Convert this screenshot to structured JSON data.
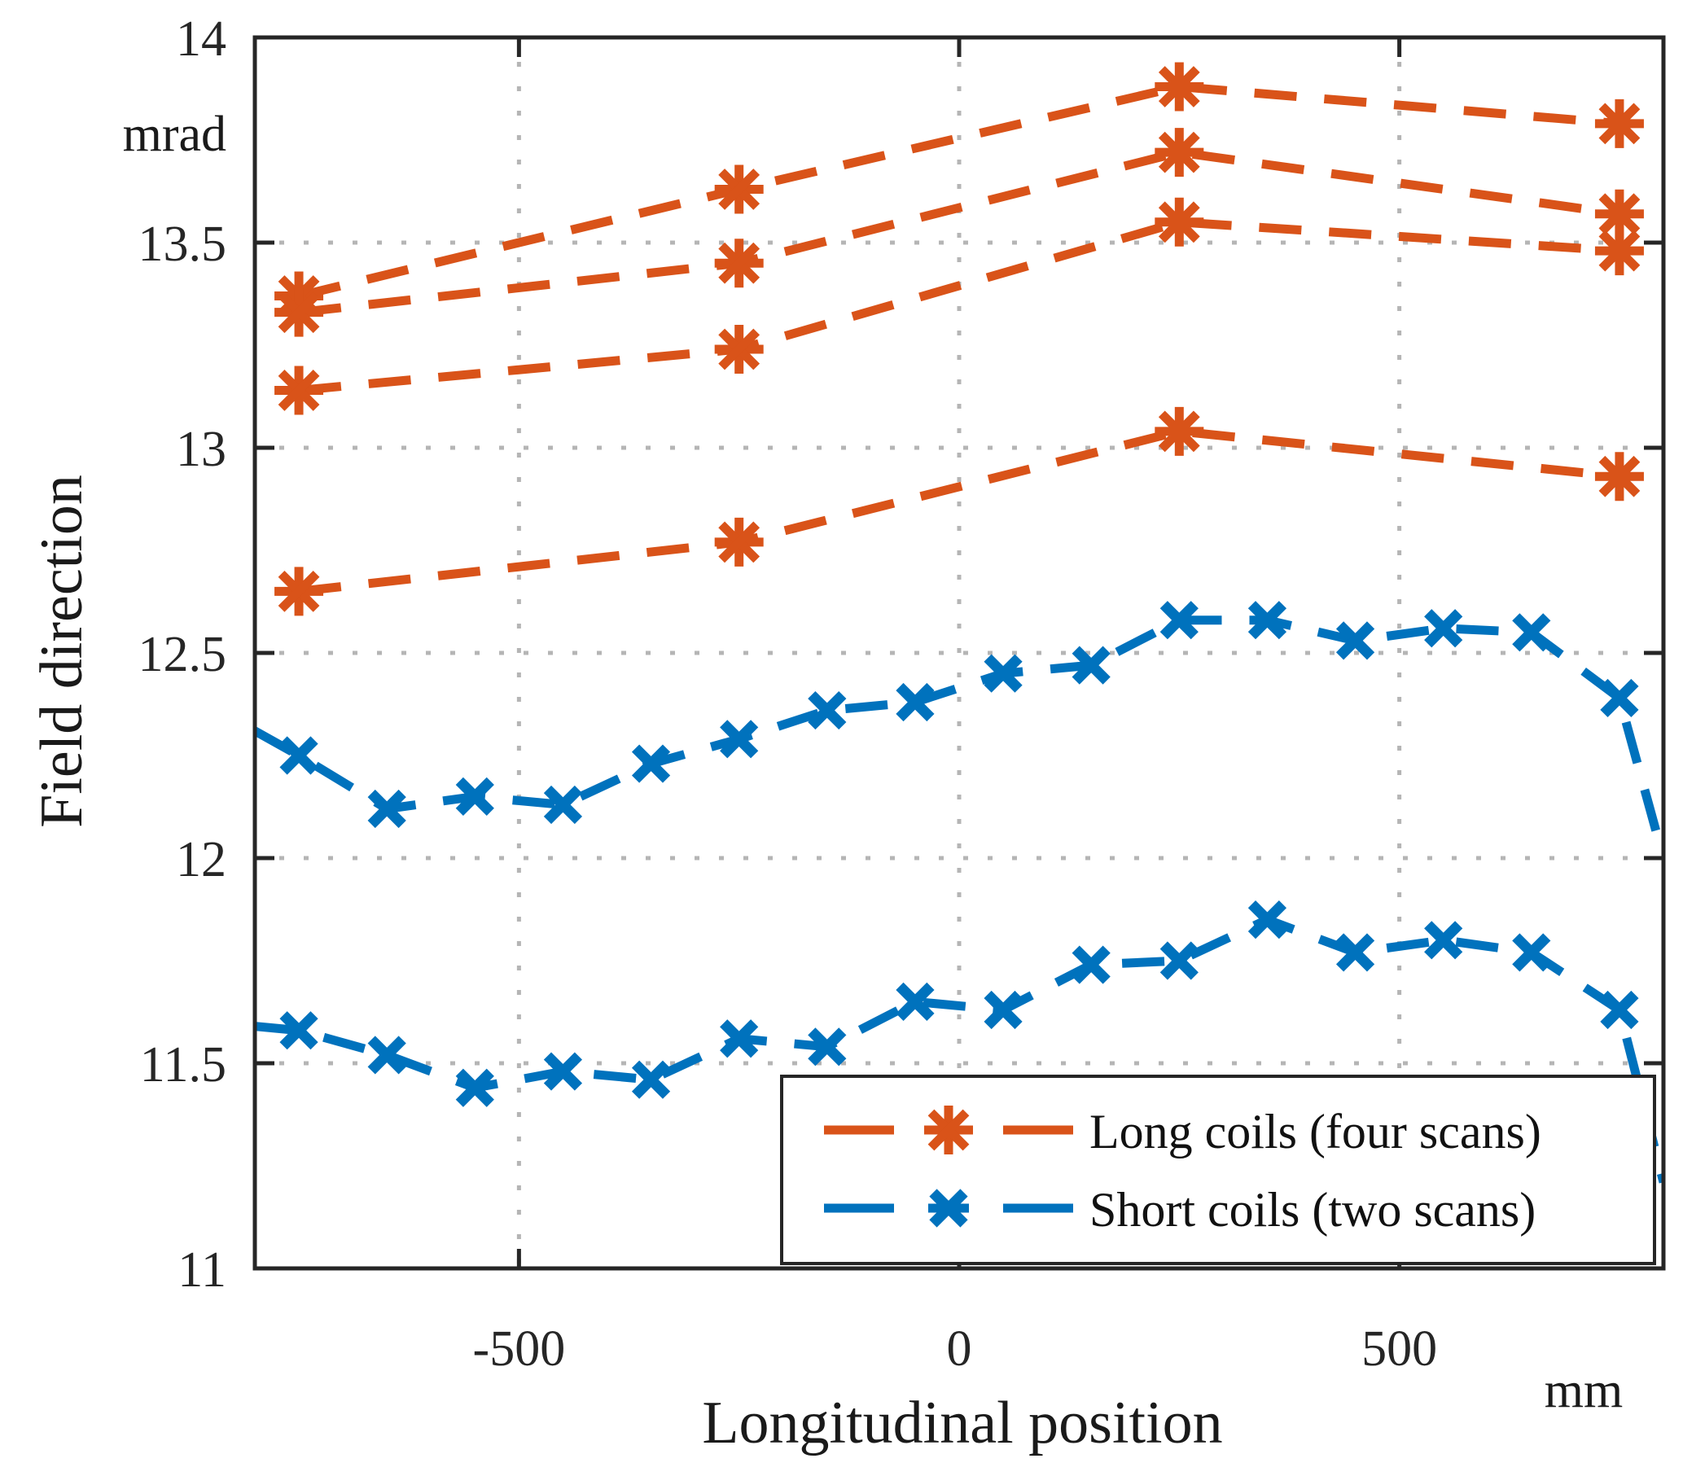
{
  "chart_data": {
    "type": "line",
    "title": "",
    "ylabel": "Field direction",
    "y_unit": "mrad",
    "xlabel": "Longitudinal position",
    "x_unit": "mm",
    "xlim": [
      -800,
      800
    ],
    "ylim": [
      11,
      14
    ],
    "x_ticks": [
      -500,
      0,
      500
    ],
    "y_ticks": [
      11,
      11.5,
      12,
      12.5,
      13,
      13.5,
      14
    ],
    "grid": true,
    "grid_style": "dotted",
    "legend_position": "bottom-right",
    "colors": {
      "long_coils": "#D95319",
      "short_coils": "#0072BD",
      "axis": "#262626",
      "grid": "#b5b5b5"
    },
    "legend": [
      {
        "label": "Long coils (four scans)",
        "color": "#D95319",
        "marker": "asterisk"
      },
      {
        "label": "Short coils (two scans)",
        "color": "#0072BD",
        "marker": "x"
      }
    ],
    "series": [
      {
        "group": "long-coils",
        "name": "long-coils-scan-1",
        "color": "#D95319",
        "marker": "asterisk",
        "x": [
          -750,
          -250,
          250,
          750
        ],
        "y": [
          13.37,
          13.63,
          13.88,
          13.79
        ]
      },
      {
        "group": "long-coils",
        "name": "long-coils-scan-2",
        "color": "#D95319",
        "marker": "asterisk",
        "x": [
          -750,
          -250,
          250,
          750
        ],
        "y": [
          13.33,
          13.45,
          13.72,
          13.57
        ]
      },
      {
        "group": "long-coils",
        "name": "long-coils-scan-3",
        "color": "#D95319",
        "marker": "asterisk",
        "x": [
          -750,
          -250,
          250,
          750
        ],
        "y": [
          13.14,
          13.24,
          13.55,
          13.48
        ]
      },
      {
        "group": "long-coils",
        "name": "long-coils-scan-4",
        "color": "#D95319",
        "marker": "asterisk",
        "x": [
          -750,
          -250,
          250,
          750
        ],
        "y": [
          12.65,
          12.77,
          13.04,
          12.93
        ]
      },
      {
        "group": "short-coils",
        "name": "short-coils-scan-1",
        "color": "#0072BD",
        "marker": "x",
        "x": [
          -800,
          -750,
          -650,
          -550,
          -450,
          -350,
          -250,
          -150,
          -50,
          50,
          150,
          250,
          350,
          450,
          550,
          650,
          750,
          800
        ],
        "y": [
          12.31,
          12.25,
          12.12,
          12.15,
          12.13,
          12.23,
          12.29,
          12.36,
          12.38,
          12.45,
          12.47,
          12.58,
          12.58,
          12.53,
          12.56,
          12.55,
          12.39,
          12.0
        ],
        "no_marker_indices": [
          0,
          17
        ]
      },
      {
        "group": "short-coils",
        "name": "short-coils-scan-2",
        "color": "#0072BD",
        "marker": "x",
        "x": [
          -800,
          -750,
          -650,
          -550,
          -450,
          -350,
          -250,
          -150,
          -50,
          50,
          150,
          250,
          350,
          450,
          550,
          650,
          750,
          800
        ],
        "y": [
          11.59,
          11.58,
          11.52,
          11.44,
          11.48,
          11.46,
          11.56,
          11.54,
          11.65,
          11.63,
          11.74,
          11.75,
          11.85,
          11.77,
          11.8,
          11.77,
          11.63,
          11.21
        ],
        "no_marker_indices": [
          0,
          17
        ]
      }
    ]
  }
}
